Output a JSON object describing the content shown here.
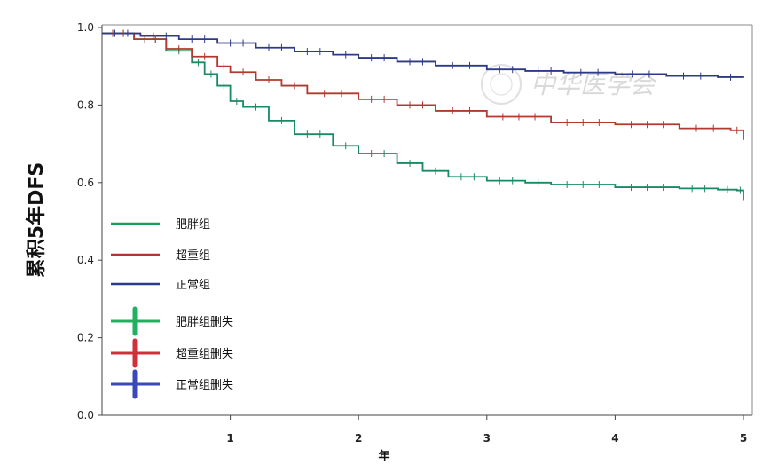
{
  "chart_data": {
    "type": "line",
    "title": "",
    "ylabel": "累积5年DFS",
    "xlabel": "年",
    "xlim": [
      0,
      5
    ],
    "ylim": [
      0,
      1.0
    ],
    "x_ticks": [
      "1",
      "2",
      "3",
      "4",
      "5"
    ],
    "y_ticks": [
      "0.0",
      "0.2",
      "0.4",
      "0.6",
      "0.8",
      "1.0"
    ],
    "grid": false,
    "legend_position": "left",
    "series": [
      {
        "name": "肥胖组",
        "color": "#1a8a62",
        "x": [
          0,
          0.25,
          0.5,
          0.7,
          0.8,
          0.9,
          1.0,
          1.1,
          1.3,
          1.5,
          1.8,
          2.0,
          2.3,
          2.5,
          2.7,
          3.0,
          3.3,
          3.5,
          4.0,
          4.5,
          4.8,
          4.95,
          5.0
        ],
        "y": [
          0.985,
          0.97,
          0.94,
          0.91,
          0.88,
          0.85,
          0.81,
          0.795,
          0.76,
          0.725,
          0.695,
          0.675,
          0.65,
          0.63,
          0.615,
          0.605,
          0.6,
          0.595,
          0.588,
          0.585,
          0.582,
          0.58,
          0.555
        ]
      },
      {
        "name": "超重组",
        "color": "#b03a2e",
        "x": [
          0,
          0.25,
          0.5,
          0.7,
          0.9,
          1.0,
          1.2,
          1.4,
          1.6,
          2.0,
          2.3,
          2.6,
          3.0,
          3.5,
          4.0,
          4.5,
          4.9,
          5.0
        ],
        "y": [
          0.985,
          0.97,
          0.945,
          0.925,
          0.9,
          0.885,
          0.865,
          0.85,
          0.83,
          0.815,
          0.8,
          0.785,
          0.77,
          0.755,
          0.75,
          0.74,
          0.735,
          0.71
        ]
      },
      {
        "name": "正常组",
        "color": "#2e3a87",
        "x": [
          0,
          0.3,
          0.6,
          0.9,
          1.2,
          1.5,
          1.8,
          2.0,
          2.3,
          2.6,
          3.0,
          3.3,
          3.6,
          4.0,
          4.4,
          4.8,
          5.0
        ],
        "y": [
          0.985,
          0.978,
          0.97,
          0.96,
          0.948,
          0.938,
          0.93,
          0.922,
          0.912,
          0.902,
          0.892,
          0.888,
          0.884,
          0.88,
          0.875,
          0.872,
          0.87
        ]
      }
    ],
    "legend": [
      {
        "label": "肥胖组",
        "color": "#1a9e5a",
        "marker": "line"
      },
      {
        "label": "超重组",
        "color": "#b83232",
        "marker": "line"
      },
      {
        "label": "正常组",
        "color": "#2c3a8a",
        "marker": "line"
      },
      {
        "label": "肥胖组删失",
        "color": "#1fb060",
        "marker": "cross"
      },
      {
        "label": "超重组删失",
        "color": "#d0303a",
        "marker": "cross"
      },
      {
        "label": "正常组删失",
        "color": "#3a48b8",
        "marker": "cross"
      }
    ]
  },
  "watermark": {
    "text": "中华医学会"
  }
}
